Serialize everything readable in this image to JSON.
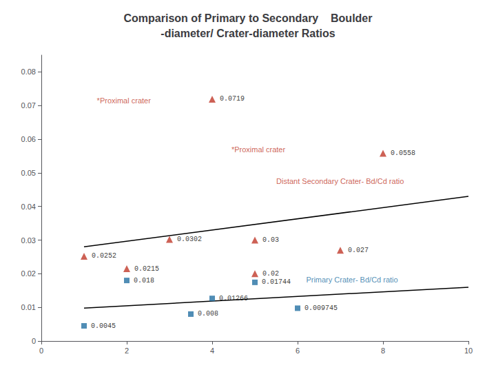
{
  "chart_data": {
    "type": "scatter",
    "title": "Comparison of Primary to Secondary    Boulder\n-diameter/ Crater-diameter Ratios",
    "xlim": [
      0,
      10
    ],
    "ylim": [
      0,
      0.085
    ],
    "xticks": [
      0,
      2,
      4,
      6,
      8,
      10
    ],
    "yticks": [
      0,
      0.01,
      0.02,
      0.03,
      0.04,
      0.05,
      0.06,
      0.07,
      0.08
    ],
    "grid": false,
    "data_labels": true,
    "series": [
      {
        "type": "scatter",
        "marker": "triangle",
        "color": "#c0392b",
        "x": [
          1.0,
          2.0,
          3.0,
          4.0,
          5.0,
          5.0,
          7.0,
          8.0
        ],
        "values": [
          0.0252,
          0.0215,
          0.0302,
          0.0719,
          0.03,
          0.02,
          0.027,
          0.0558
        ]
      },
      {
        "type": "scatter",
        "marker": "square",
        "color": "#2471a3",
        "x": [
          1.0,
          2.0,
          3.5,
          4.0,
          5.0,
          6.0
        ],
        "values": [
          0.0045,
          0.018,
          0.008,
          0.01266,
          0.01744,
          0.009745
        ]
      },
      {
        "type": "line",
        "color": "#000000",
        "x": [
          1.0,
          10.0
        ],
        "values": [
          0.028,
          0.043
        ]
      },
      {
        "type": "line",
        "color": "#000000",
        "x": [
          1.0,
          10.0
        ],
        "values": [
          0.0098,
          0.016
        ]
      }
    ],
    "annotations": [
      {
        "text": "*Proximal crater",
        "x": 1.3,
        "y": 0.0715,
        "color": "#c0392b"
      },
      {
        "text": "*Proximal crater",
        "x": 4.45,
        "y": 0.057,
        "color": "#c0392b"
      },
      {
        "text": "Distant Secondary Crater- Bd/Cd ratio",
        "x": 5.5,
        "y": 0.0475,
        "color": "#c0392b"
      },
      {
        "text": "Primary Crater- Bd/Cd ratio",
        "x": 6.2,
        "y": 0.0183,
        "color": "#2471a3"
      }
    ]
  }
}
